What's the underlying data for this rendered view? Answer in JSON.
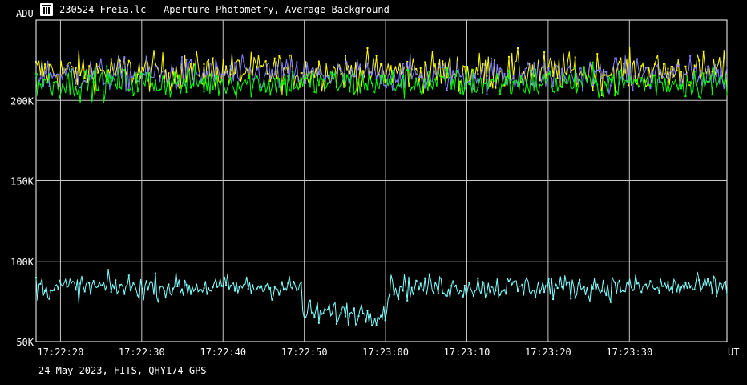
{
  "window": {
    "title": "230524 Freia.lc - Aperture Photometry, Average Background"
  },
  "icons": {
    "app": "photometry-app-icon"
  },
  "footer": {
    "text": "24 May 2023, FITS, QHY174-GPS"
  },
  "chart_data": {
    "type": "line",
    "ylabel": "ADU",
    "xlabel": "UT",
    "x_range_seconds": [
      "17:22:17",
      "17:23:42"
    ],
    "ylim": [
      50000,
      250000
    ],
    "yticks": [
      {
        "value": 50000,
        "label": "50K"
      },
      {
        "value": 100000,
        "label": "100K"
      },
      {
        "value": 150000,
        "label": "150K"
      },
      {
        "value": 200000,
        "label": "200K"
      }
    ],
    "xticks": [
      "17:22:20",
      "17:22:30",
      "17:22:40",
      "17:22:50",
      "17:23:00",
      "17:23:10",
      "17:23:20",
      "17:23:30"
    ],
    "grid": true,
    "series": [
      {
        "color": "#ffff00",
        "mean": 218000,
        "noise": 8500,
        "profile": "flat"
      },
      {
        "color": "#8080ff",
        "mean": 216000,
        "noise": 7500,
        "profile": "flat"
      },
      {
        "color": "#00ff00",
        "mean": 211000,
        "noise": 7000,
        "profile": "flat"
      },
      {
        "color": "#80ffff",
        "mean": 84000,
        "noise": 5500,
        "profile": "dip",
        "dip": {
          "start": "17:22:50",
          "end": "17:23:00",
          "value": 68000
        }
      }
    ]
  }
}
